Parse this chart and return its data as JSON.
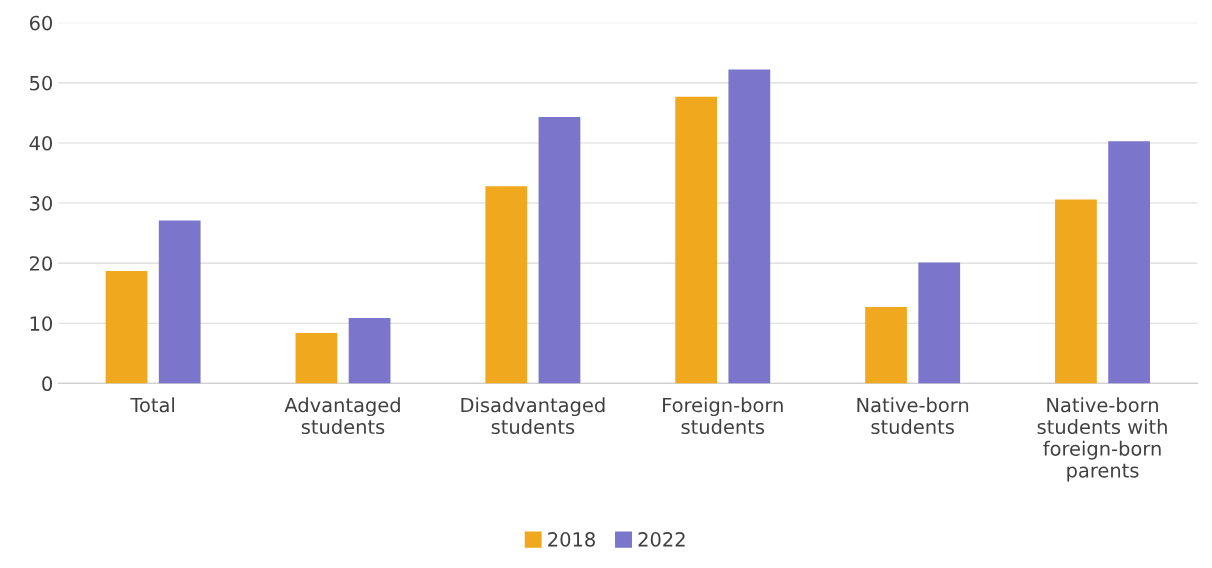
{
  "chart_data": {
    "type": "bar",
    "categories": [
      "Total",
      "Advantaged\nstudents",
      "Disadvantaged\nstudents",
      "Foreign-born\nstudents",
      "Native-born\nstudents",
      "Native-born\nstudents with\nforeign-born\nparents"
    ],
    "series": [
      {
        "name": "2018",
        "color": "#f0a91e",
        "values": [
          18.7,
          8.4,
          32.8,
          47.7,
          12.7,
          30.6
        ]
      },
      {
        "name": "2022",
        "color": "#7b76cb",
        "values": [
          27.1,
          10.9,
          44.3,
          52.2,
          20.1,
          40.3
        ]
      }
    ],
    "ylim": [
      0,
      60
    ],
    "yticks": [
      0,
      10,
      20,
      30,
      40,
      50,
      60
    ],
    "grid": "y",
    "legend": "bottom"
  }
}
